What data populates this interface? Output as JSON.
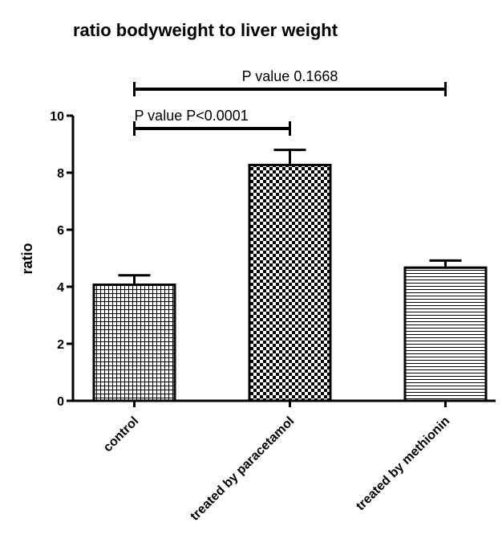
{
  "chart_data": {
    "type": "bar",
    "title": "ratio bodyweight to liver weight",
    "xlabel": "",
    "ylabel": "ratio",
    "ylim": [
      0,
      10
    ],
    "yticks": [
      0,
      2,
      4,
      6,
      8,
      10
    ],
    "categories": [
      "control",
      "treated by paracetamol",
      "treated by methionin"
    ],
    "values": [
      4.07,
      8.27,
      4.67
    ],
    "errors": [
      0.33,
      0.53,
      0.25
    ],
    "fill_patterns": [
      "fine-crosshatch",
      "checkerboard",
      "horizontal-lines"
    ],
    "annotations": [
      {
        "label": "P value  0.1668",
        "from": "control",
        "to": "treated by methionin"
      },
      {
        "label": "P value  P<0.0001",
        "from": "control",
        "to": "treated by paracetamol"
      }
    ],
    "grid": false
  }
}
